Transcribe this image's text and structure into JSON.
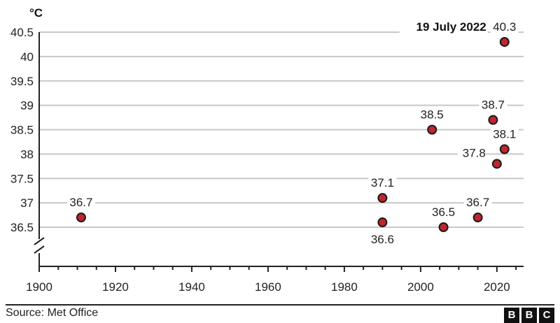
{
  "chart_data": {
    "type": "scatter",
    "title": "",
    "xlabel": "",
    "ylabel": "°C",
    "xlim": [
      1900,
      2027
    ],
    "ylim": [
      36.0,
      40.5
    ],
    "axis_break": "y",
    "grid": true,
    "x_ticks": [
      1900,
      1920,
      1940,
      1960,
      1980,
      2000,
      2020
    ],
    "y_ticks": [
      36.5,
      37,
      37.5,
      38,
      38.5,
      39,
      39.5,
      40,
      40.5
    ],
    "y_tick_labels": [
      "36.5",
      "37",
      "37.5",
      "38",
      "38.5",
      "39",
      "39.5",
      "40",
      "40.5"
    ],
    "point_color": "#c0262d",
    "points": [
      {
        "x": 1911,
        "y": 36.7,
        "label": "36.7",
        "label_pos": "above"
      },
      {
        "x": 1990,
        "y": 37.1,
        "label": "37.1",
        "label_pos": "above"
      },
      {
        "x": 1990,
        "y": 36.6,
        "label": "36.6",
        "label_pos": "below"
      },
      {
        "x": 2003,
        "y": 38.5,
        "label": "38.5",
        "label_pos": "above"
      },
      {
        "x": 2006,
        "y": 36.5,
        "label": "36.5",
        "label_pos": "above"
      },
      {
        "x": 2015,
        "y": 36.7,
        "label": "36.7",
        "label_pos": "above"
      },
      {
        "x": 2019,
        "y": 38.7,
        "label": "38.7",
        "label_pos": "above"
      },
      {
        "x": 2020,
        "y": 37.8,
        "label": "37.8",
        "label_pos": "left"
      },
      {
        "x": 2022,
        "y": 38.1,
        "label": "38.1",
        "label_pos": "above"
      },
      {
        "x": 2022,
        "y": 40.3,
        "label": "40.3",
        "label_pos": "above"
      }
    ],
    "annotation": {
      "text": "19 July 2022"
    }
  },
  "footer": {
    "source": "Source: Met Office",
    "logo": [
      "B",
      "B",
      "C"
    ]
  }
}
